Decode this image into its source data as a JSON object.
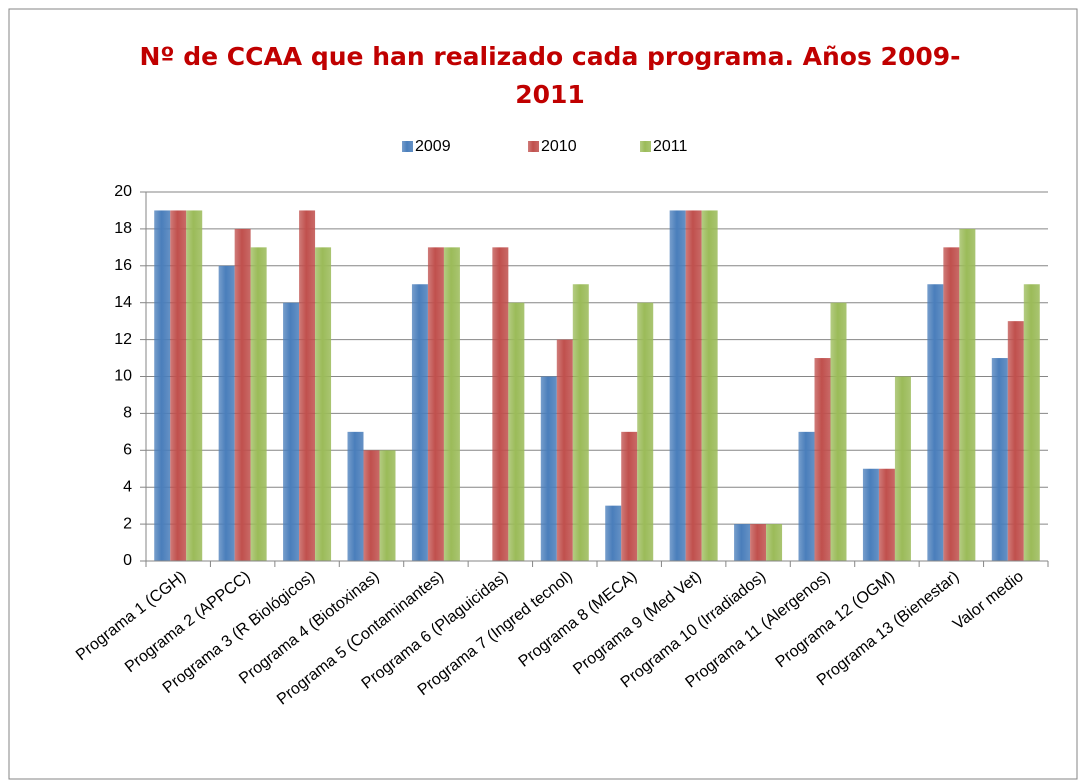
{
  "chart_data": {
    "type": "bar",
    "title": "Nº de CCAA que han realizado cada programa. Años 2009-2011",
    "categories": [
      "Programa 1 (CGH)",
      "Programa 2 (APPCC)",
      "Programa 3 (R Biológicos)",
      "Programa 4 (Biotoxinas)",
      "Programa 5 (Contaminantes)",
      "Programa 6 (Plaguicidas)",
      "Programa 7 (Ingred tecnol)",
      "Programa 8 (MECA)",
      "Programa 9 (Med Vet)",
      "Programa 10 (Irradiados)",
      "Programa 11 (Alergenos)",
      "Programa 12 (OGM)",
      "Programa 13 (Bienestar)",
      "Valor medio"
    ],
    "series": [
      {
        "name": "2009",
        "color": "#4a7ebb",
        "values": [
          19,
          16,
          14,
          7,
          15,
          0,
          10,
          3,
          19,
          2,
          7,
          5,
          15,
          11
        ]
      },
      {
        "name": "2010",
        "color": "#c0504d",
        "values": [
          19,
          18,
          19,
          6,
          17,
          17,
          12,
          7,
          19,
          2,
          11,
          5,
          17,
          13
        ]
      },
      {
        "name": "2011",
        "color": "#9bbb59",
        "values": [
          19,
          17,
          17,
          6,
          17,
          14,
          15,
          14,
          19,
          2,
          14,
          10,
          18,
          15
        ]
      }
    ],
    "ylim": [
      0,
      20
    ],
    "yticks": [
      0,
      2,
      4,
      6,
      8,
      10,
      12,
      14,
      16,
      18,
      20
    ],
    "grid": true,
    "legend": "top"
  }
}
